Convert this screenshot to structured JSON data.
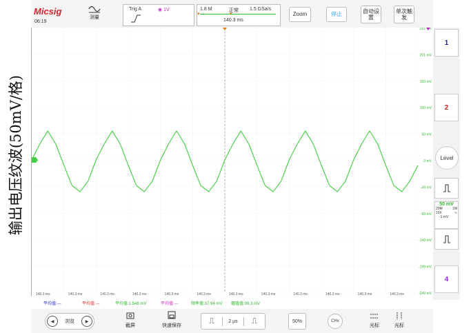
{
  "side_label": "输出电压纹波(50mV/格)",
  "topbar": {
    "logo": "Micsig",
    "time": "06:19",
    "measure_label": "测量",
    "trig_label": "Trig A",
    "trig_value": "1V",
    "mem_depth": "1.8 M",
    "run_state": "正常",
    "sample_rate": "1.5 GSa/s",
    "trigger_time": "140.3 ms",
    "zoom": "Zoom",
    "auto_btn": "自动设置",
    "stop_btn": "停止",
    "single_btn": "单次触发"
  },
  "channels": [
    {
      "label": "1",
      "color": "#1a1aa8"
    },
    {
      "label": "2",
      "color": "#cc1f1f"
    },
    {
      "label": "4",
      "color": "#8a2be2"
    }
  ],
  "level_button": "Level",
  "ch_info": {
    "scale": "50 mV",
    "bw": "20M",
    "imp": "1M",
    "probe": "10X",
    "offset": "-1 mV"
  },
  "y_ticks": [
    "251 mV",
    "201 mV",
    "150 mV",
    "100 mV",
    "50 mV",
    "0 mV",
    "-49 mV",
    "-99 mV",
    "-149 mV",
    "-199 mV",
    "-249 mV"
  ],
  "x_ticks": [
    "140.3 ms",
    "140.3 ms",
    "140.3 ms",
    "140.3 ms",
    "140.3 ms",
    "140.3 ms",
    "140.3 ms",
    "140.3 ms",
    "140.3 ms",
    "140.3 ms",
    "140.3 ms",
    "140.3 ms"
  ],
  "measurements": [
    {
      "text": "平均值:---",
      "color": "#2a2ad0"
    },
    {
      "text": "平均值:---",
      "color": "#e03030"
    },
    {
      "text": "平均值:1.546 mV",
      "color": "#2db82d"
    },
    {
      "text": "平均值:---",
      "color": "#c030c0"
    },
    {
      "text": "频率值:37.94 mV",
      "color": "#2db82d"
    },
    {
      "text": "幅值值:99.3 mV",
      "color": "#2db82d"
    }
  ],
  "bottombar": {
    "browse": "浏览",
    "screenshot": "截屏",
    "quick_save": "快速保存",
    "timebase": "2 µs",
    "percent": "50%",
    "chx": "CHx",
    "cursor": "光标",
    "fft": "光标"
  },
  "chart_data": {
    "type": "line",
    "title": "",
    "xlabel": "",
    "ylabel": "输出电压纹波(50mV/格)",
    "ylim": [
      -250,
      250
    ],
    "xlim": [
      0,
      12
    ],
    "series": [
      {
        "x": [
          0,
          0.25,
          0.5,
          0.75,
          1,
          1.25,
          1.5,
          1.75,
          2,
          2.25,
          2.5,
          2.75,
          3,
          3.25,
          3.5,
          3.75,
          4,
          4.25,
          4.5,
          4.75,
          5,
          5.25,
          5.5,
          5.75,
          6,
          6.25,
          6.5,
          6.75,
          7,
          7.25,
          7.5,
          7.75,
          8,
          8.25,
          8.5,
          8.75,
          9,
          9.25,
          9.5,
          9.75,
          10,
          10.25,
          10.5,
          10.75,
          11,
          11.25,
          11.5,
          11.75,
          12
        ],
        "y": [
          0,
          30,
          55,
          30,
          -10,
          -48,
          -60,
          -40,
          0,
          30,
          55,
          30,
          -10,
          -48,
          -60,
          -40,
          0,
          30,
          55,
          30,
          -10,
          -48,
          -60,
          -40,
          0,
          30,
          55,
          30,
          -10,
          -48,
          -60,
          -40,
          0,
          30,
          55,
          30,
          -10,
          -48,
          -60,
          -40,
          0,
          30,
          55,
          30,
          -10,
          -48,
          -60,
          -40,
          -10
        ]
      }
    ],
    "grid": true,
    "color": "#3fcf3f"
  }
}
